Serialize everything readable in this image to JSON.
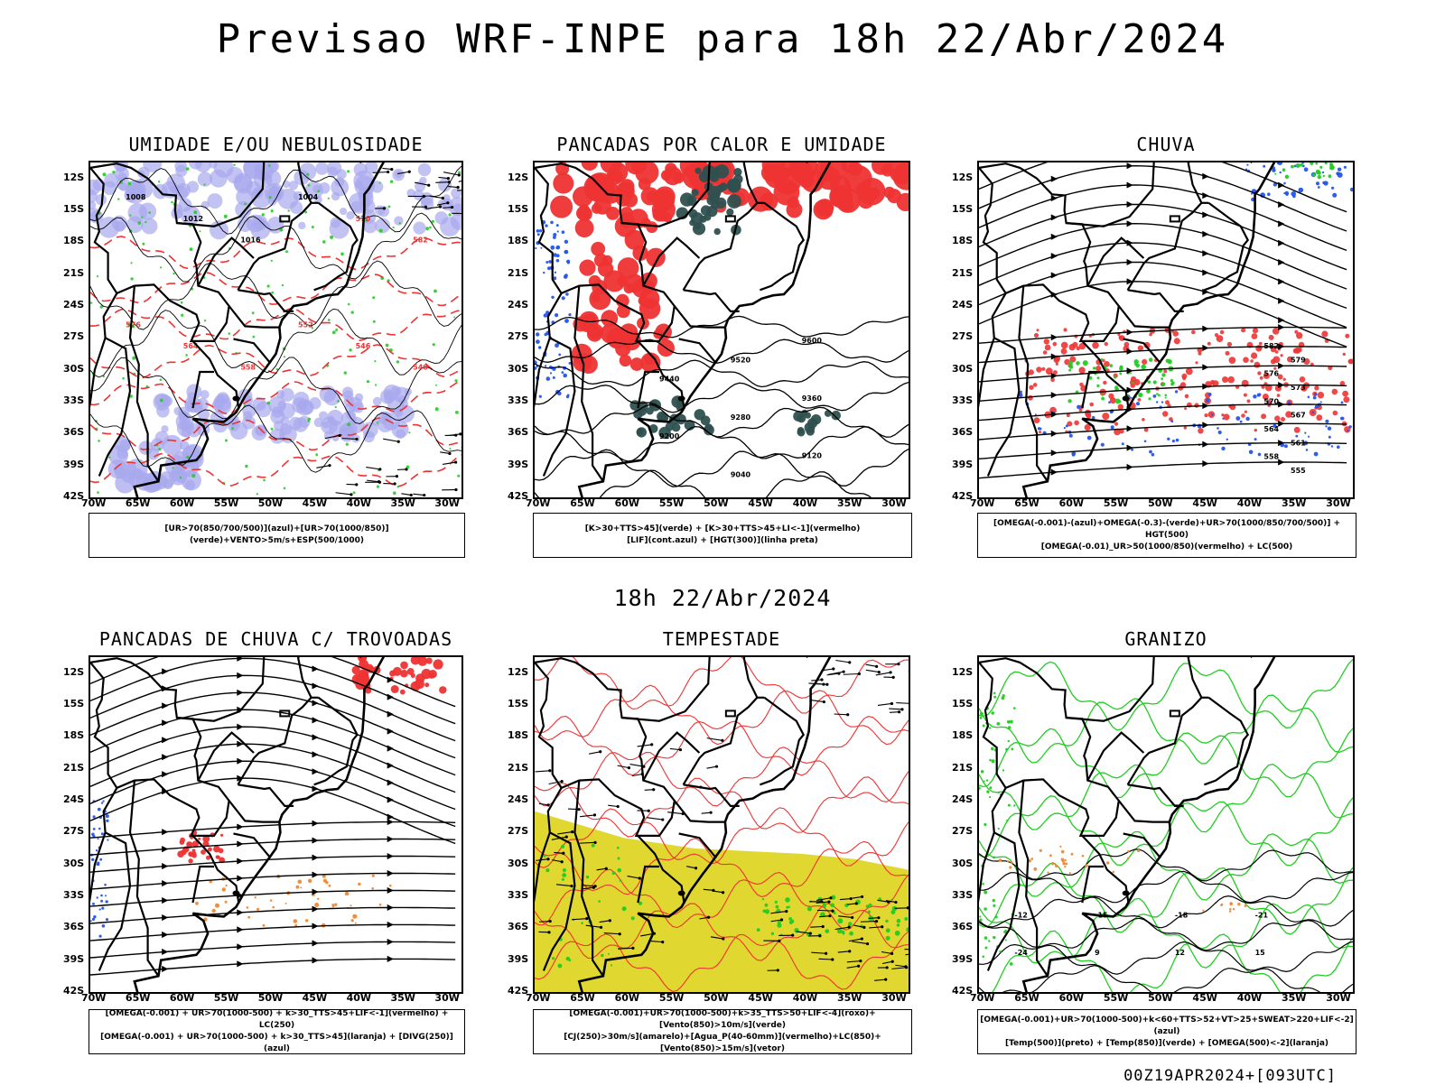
{
  "header": {
    "title": "Previsao WRF-INPE  para 18h 22/Abr/2024",
    "mid_date": "18h 22/Abr/2024",
    "footer": "00Z19APR2024+[093UTC]"
  },
  "axes": {
    "lat_ticks": [
      "12S",
      "15S",
      "18S",
      "21S",
      "24S",
      "27S",
      "30S",
      "33S",
      "36S",
      "39S",
      "42S"
    ],
    "lon_ticks": [
      "70W",
      "65W",
      "60W",
      "55W",
      "50W",
      "45W",
      "40W",
      "35W",
      "30W"
    ]
  },
  "colors": {
    "blue": "#2255ee",
    "green": "#22cc22",
    "red": "#ee3333",
    "orange": "#ee8833",
    "lavender": "#a8a8ee",
    "darkteal": "#2f5050",
    "yellow": "#e0d830",
    "black": "#000000"
  },
  "panels": [
    {
      "title": "UMIDADE E/OU NEBULOSIDADE",
      "legend": [
        "[UR>70(850/700/500)](azul)+[UR>70(1000/850)](verde)+VENTO>5m/s+ESP(500/1000)"
      ],
      "contour_labels": [
        "1008",
        "1012",
        "1016",
        "1004",
        "570",
        "582",
        "576",
        "564",
        "558",
        "552",
        "546",
        "540"
      ]
    },
    {
      "title": "PANCADAS POR CALOR E UMIDADE",
      "legend": [
        "[K>30+TTS>45](verde) + [K>30+TTS>45+LI<-1](vermelho)",
        "[LIF](cont.azul) + [HGT(300)](linha preta)"
      ],
      "contour_labels": [
        "9600",
        "9520",
        "9440",
        "9360",
        "9280",
        "9200",
        "9120",
        "9040"
      ]
    },
    {
      "title": "CHUVA",
      "legend": [
        "[OMEGA(-0.001)-(azul)+OMEGA(-0.3)-(verde)+UR>70(1000/850/700/500)] + HGT(500)",
        "[OMEGA(-0.01)_UR>50(1000/850)(vermelho) + LC(500)"
      ],
      "contour_labels": [
        "582",
        "579",
        "576",
        "573",
        "570",
        "567",
        "564",
        "561",
        "558",
        "555"
      ]
    },
    {
      "title": "PANCADAS DE CHUVA C/ TROVOADAS",
      "legend": [
        "[OMEGA(-0.001) + UR>70(1000-500) + k>30_TTS>45+LIF<-1](vermelho) + LC(250)",
        "[OMEGA(-0.001) + UR>70(1000-500) + k>30_TTS>45](laranja) + [DIVG(250)](azul)"
      ],
      "contour_labels": []
    },
    {
      "title": "TEMPESTADE",
      "legend": [
        "[OMEGA(-0.001)+UR>70(1000-500)+k>35_TTS>50+LIF<-4](roxo)+[Vento(850)>10m/s](verde)",
        "[CJ(250)>30m/s](amarelo)+[Agua_P(40-60mm)](vermelho)+LC(850)+[Vento(850)>15m/s](vetor)"
      ],
      "contour_labels": []
    },
    {
      "title": "GRANIZO",
      "legend": [
        "[OMEGA(-0.001)+UR>70(1000-500)+k<60+TTS>52+VT>25+SWEAT>220+LIF<-2](azul)",
        "[Temp(500)](preto) + [Temp(850)](verde) + [OMEGA(500)<-2](laranja)"
      ],
      "contour_labels": [
        "-12",
        "-15",
        "-18",
        "-21",
        "-24",
        "9",
        "12",
        "15"
      ]
    }
  ]
}
